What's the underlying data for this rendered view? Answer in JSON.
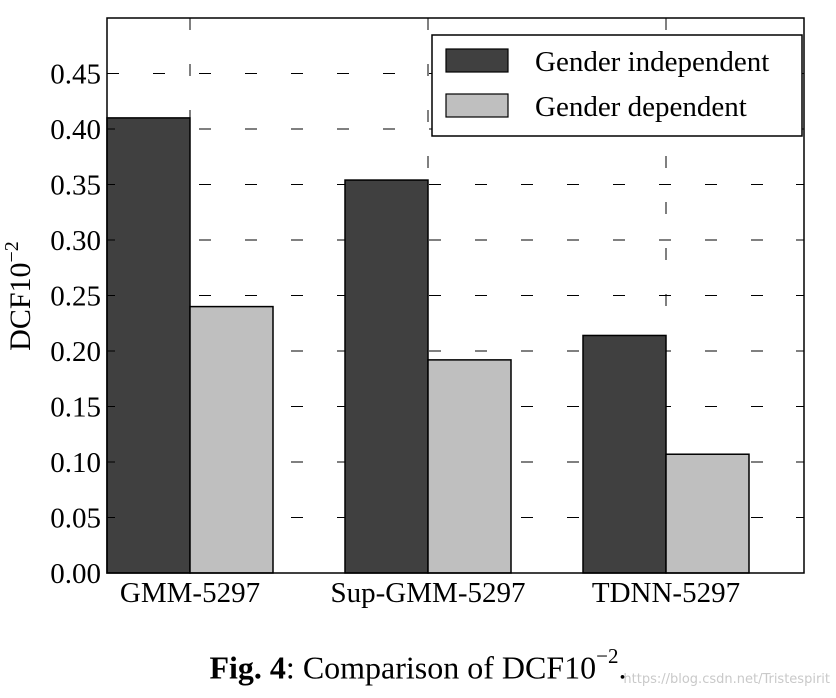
{
  "chart_data": {
    "type": "bar",
    "categories": [
      "GMM-5297",
      "Sup-GMM-5297",
      "TDNN-5297"
    ],
    "series": [
      {
        "name": "Gender independent",
        "values": [
          0.41,
          0.354,
          0.214
        ],
        "color": "#404040"
      },
      {
        "name": "Gender dependent",
        "values": [
          0.24,
          0.192,
          0.107
        ],
        "color": "#bfbfbf"
      }
    ],
    "ylabel": "DCF10",
    "ylabel_exponent": "−2",
    "ylim": [
      0,
      0.5
    ],
    "yticks": [
      "0.00",
      "0.05",
      "0.10",
      "0.15",
      "0.20",
      "0.25",
      "0.30",
      "0.35",
      "0.40",
      "0.45"
    ],
    "grid": true,
    "legend_position": "top-right"
  },
  "caption": {
    "label": "Fig. 4",
    "text": ": Comparison of DCF10",
    "exponent": "−2",
    "end": "."
  },
  "watermark": "https://blog.csdn.net/Tristespirit"
}
